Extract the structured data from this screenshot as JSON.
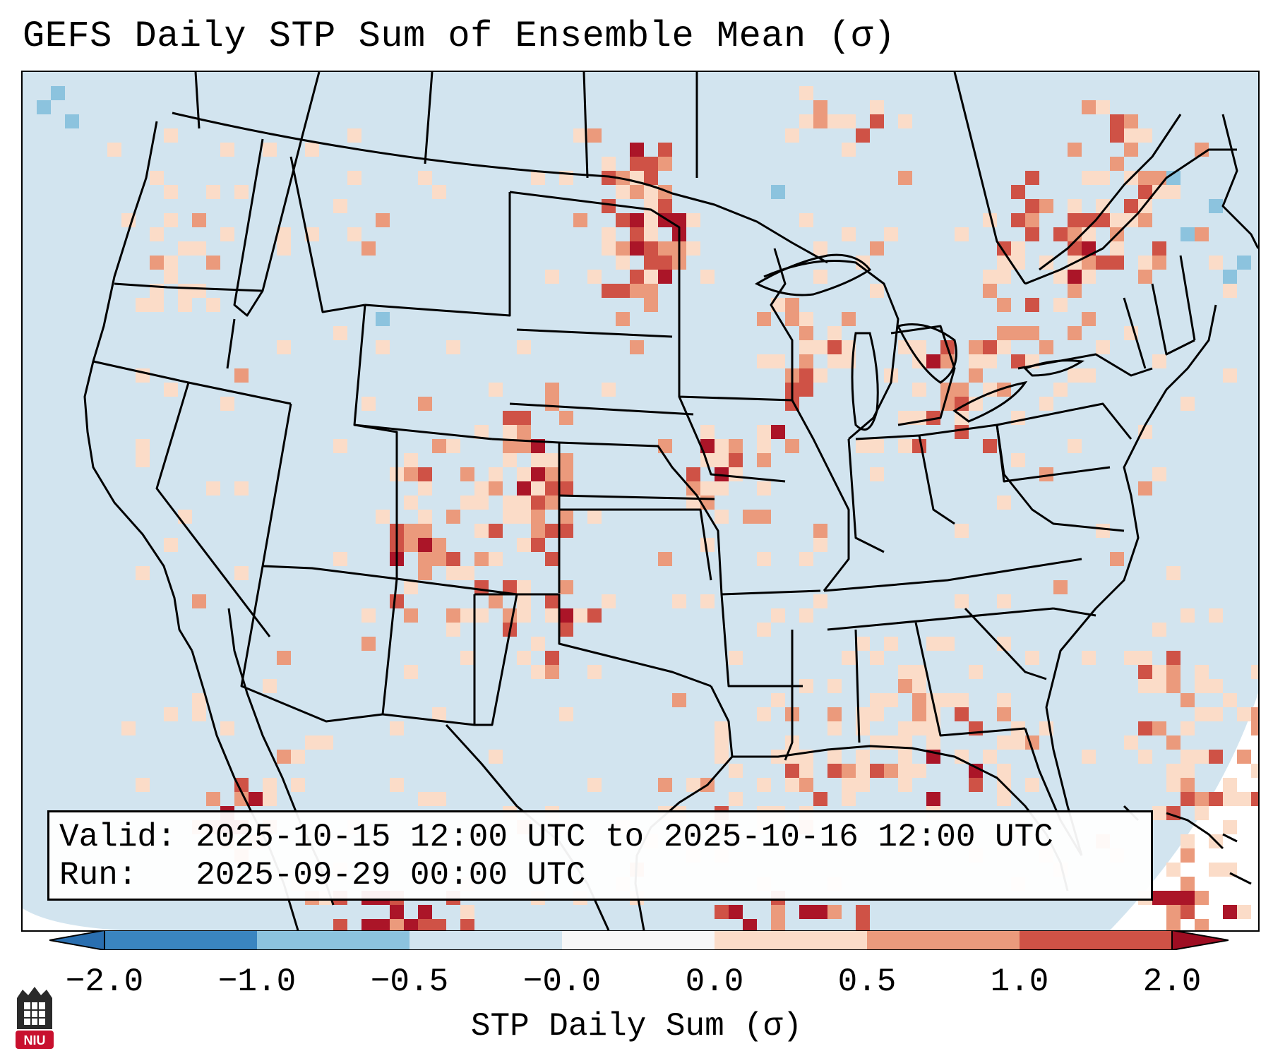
{
  "title": "GEFS Daily STP Sum of Ensemble Mean (σ)",
  "info": {
    "valid_label": "Valid:",
    "valid_value": "2025-10-15 12:00 UTC to 2025-10-16 12:00 UTC",
    "run_label": "Run:",
    "run_value": "2025-09-29 00:00 UTC"
  },
  "colorbar": {
    "label": "STP Daily Sum (σ)",
    "ticks": [
      "−2.0",
      "−1.0",
      "−0.5",
      "−0.0",
      "0.0",
      "0.5",
      "1.0",
      "2.0"
    ],
    "colors": [
      "#3a85c0",
      "#8cc3de",
      "#d2e4ef",
      "#f7f7f7",
      "#fbdcc8",
      "#eb9a7c",
      "#cf5246",
      "#ab1528"
    ]
  },
  "logo": {
    "text": "NIU"
  }
}
